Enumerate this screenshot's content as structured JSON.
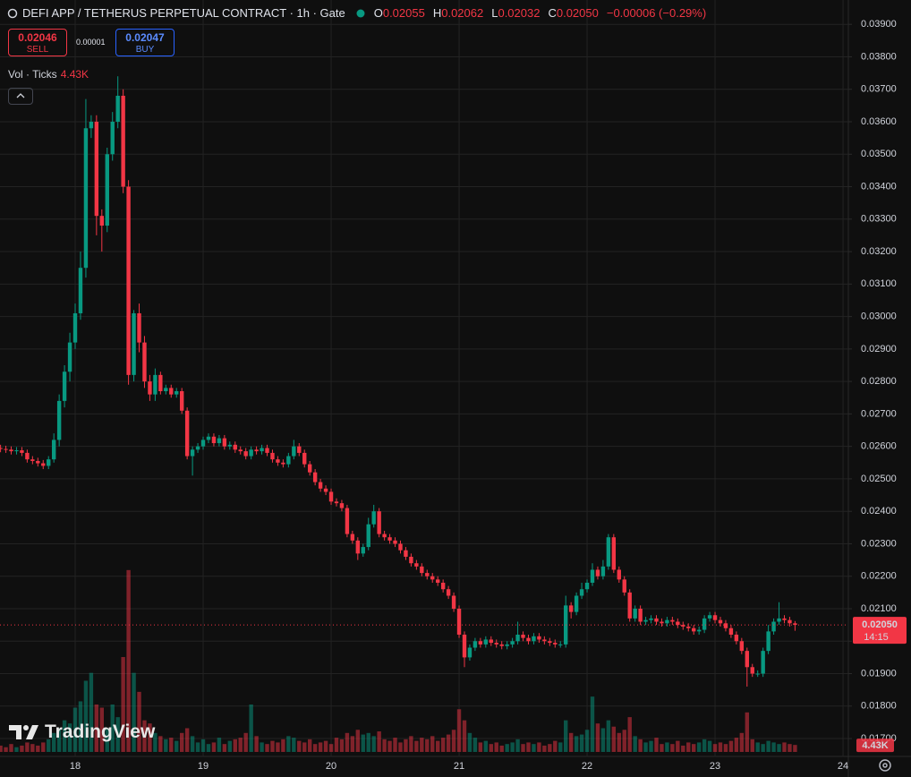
{
  "header": {
    "symbol": "DEFI APP / TETHERUS PERPETUAL CONTRACT · 1h · Gate",
    "ohlc": [
      {
        "key": "O",
        "value": "0.02055"
      },
      {
        "key": "H",
        "value": "0.02062"
      },
      {
        "key": "L",
        "value": "0.02032"
      },
      {
        "key": "C",
        "value": "0.02050"
      }
    ],
    "change": "−0.00006 (−0.29%)"
  },
  "trade": {
    "sell": {
      "price": "0.02046",
      "label": "SELL"
    },
    "spread": "0.00001",
    "buy": {
      "price": "0.02047",
      "label": "BUY"
    }
  },
  "indicator": {
    "name": "Vol · Ticks"
  },
  "price_badge": {
    "countdown": "14:15"
  },
  "watermark": "TradingView",
  "chart_data": {
    "type": "candlestick",
    "up_color": "#089981",
    "down_color": "#f23645",
    "grid": true,
    "x": [
      10,
      11,
      12,
      13,
      14,
      15,
      16,
      17,
      18,
      19,
      20,
      21,
      22,
      23,
      24,
      25,
      26,
      27,
      28,
      29,
      30,
      31,
      32,
      33,
      34,
      35,
      36,
      37,
      38,
      39,
      40,
      41,
      42,
      43,
      44,
      45,
      46,
      47,
      48,
      49,
      50,
      51,
      52,
      53,
      54,
      55,
      56,
      57,
      58,
      59,
      60,
      61,
      62,
      63,
      64,
      65,
      66,
      67,
      68,
      69,
      70,
      71,
      72,
      73,
      74,
      75,
      76,
      77,
      78,
      79,
      80,
      81,
      82,
      83,
      84,
      85,
      86,
      87,
      88,
      89,
      90,
      91,
      92,
      93,
      94,
      95,
      96,
      97,
      98,
      99,
      100,
      101,
      102,
      103,
      104,
      105,
      106,
      107,
      108,
      109,
      110,
      111,
      112,
      113,
      114,
      115,
      116,
      117,
      118,
      119,
      120,
      121,
      122,
      123,
      124,
      125,
      126,
      127,
      128,
      129,
      130,
      131,
      132,
      133,
      134,
      135,
      136,
      137,
      138,
      139,
      140,
      141,
      142,
      143,
      144,
      145,
      146,
      147,
      148,
      149,
      150,
      151,
      152,
      153,
      154,
      155,
      156,
      157,
      158,
      159
    ],
    "open": [
      0.02595,
      0.02592,
      0.0259,
      0.02585,
      0.02588,
      0.0258,
      0.0256,
      0.02555,
      0.02548,
      0.0254,
      0.0256,
      0.0262,
      0.0274,
      0.0283,
      0.0292,
      0.0301,
      0.0315,
      0.0358,
      0.036,
      0.0331,
      0.0328,
      0.035,
      0.036,
      0.0368,
      0.034,
      0.0282,
      0.0301,
      0.0292,
      0.028,
      0.0276,
      0.0282,
      0.0277,
      0.0278,
      0.0276,
      0.0277,
      0.0271,
      0.0257,
      0.0259,
      0.026,
      0.0262,
      0.0263,
      0.0261,
      0.02625,
      0.026,
      0.02605,
      0.0259,
      0.02585,
      0.0257,
      0.0259,
      0.02585,
      0.02595,
      0.0258,
      0.0256,
      0.0255,
      0.02545,
      0.0257,
      0.026,
      0.0258,
      0.02545,
      0.0252,
      0.0249,
      0.0247,
      0.0246,
      0.0243,
      0.02425,
      0.0241,
      0.0233,
      0.0231,
      0.0227,
      0.0229,
      0.0236,
      0.024,
      0.0233,
      0.0232,
      0.0231,
      0.023,
      0.0228,
      0.0226,
      0.0224,
      0.0223,
      0.0221,
      0.022,
      0.0219,
      0.0218,
      0.0216,
      0.0214,
      0.021,
      0.0202,
      0.0195,
      0.0198,
      0.02,
      0.0199,
      0.02005,
      0.01995,
      0.0199,
      0.01985,
      0.0199,
      0.02,
      0.0202,
      0.0201,
      0.02,
      0.02015,
      0.02005,
      0.02,
      0.01995,
      0.0199,
      0.0199,
      0.0211,
      0.0209,
      0.0214,
      0.0216,
      0.0218,
      0.0222,
      0.022,
      0.0223,
      0.0232,
      0.0222,
      0.0219,
      0.0215,
      0.0207,
      0.021,
      0.0206,
      0.02065,
      0.0207,
      0.0206,
      0.02055,
      0.02065,
      0.0206,
      0.0205,
      0.02045,
      0.0204,
      0.0203,
      0.02035,
      0.0207,
      0.0208,
      0.02065,
      0.02055,
      0.0204,
      0.0202,
      0.02,
      0.0197,
      0.0192,
      0.019,
      0.019,
      0.0197,
      0.0203,
      0.0206,
      0.0207,
      0.02065,
      0.02055
    ],
    "high": [
      0.02605,
      0.02602,
      0.026,
      0.02598,
      0.02598,
      0.0259,
      0.0257,
      0.02565,
      0.02558,
      0.0257,
      0.0264,
      0.0276,
      0.0285,
      0.0295,
      0.0304,
      0.032,
      0.0367,
      0.0362,
      0.0362,
      0.0333,
      0.0352,
      0.0363,
      0.0374,
      0.037,
      0.0342,
      0.0302,
      0.0304,
      0.0294,
      0.0282,
      0.0284,
      0.0283,
      0.0279,
      0.0279,
      0.0278,
      0.0278,
      0.0272,
      0.026,
      0.0261,
      0.0263,
      0.0264,
      0.0264,
      0.02635,
      0.02635,
      0.02615,
      0.02615,
      0.026,
      0.02595,
      0.026,
      0.026,
      0.02605,
      0.02605,
      0.0259,
      0.0257,
      0.0256,
      0.0258,
      0.0262,
      0.0261,
      0.0259,
      0.02555,
      0.0253,
      0.025,
      0.0248,
      0.0247,
      0.0244,
      0.02435,
      0.0242,
      0.0234,
      0.0232,
      0.023,
      0.0238,
      0.0242,
      0.0241,
      0.0234,
      0.0233,
      0.0232,
      0.0231,
      0.0229,
      0.0227,
      0.0225,
      0.0224,
      0.0222,
      0.0221,
      0.022,
      0.0219,
      0.0217,
      0.0215,
      0.0211,
      0.0203,
      0.0199,
      0.0201,
      0.0201,
      0.02015,
      0.02015,
      0.02005,
      0.02,
      0.02,
      0.0201,
      0.0206,
      0.0203,
      0.0202,
      0.02025,
      0.02025,
      0.02015,
      0.0201,
      0.02005,
      0.02,
      0.0214,
      0.0212,
      0.0215,
      0.0218,
      0.0219,
      0.0224,
      0.0223,
      0.0225,
      0.0233,
      0.0233,
      0.0223,
      0.022,
      0.0216,
      0.0211,
      0.0211,
      0.02075,
      0.0208,
      0.0208,
      0.0207,
      0.02075,
      0.02075,
      0.0207,
      0.0206,
      0.02055,
      0.0205,
      0.02045,
      0.0208,
      0.0209,
      0.0209,
      0.02075,
      0.02065,
      0.0205,
      0.0203,
      0.0201,
      0.0198,
      0.0193,
      0.0191,
      0.0198,
      0.0205,
      0.0207,
      0.0212,
      0.0208,
      0.02075,
      0.02062
    ],
    "low": [
      0.02582,
      0.0258,
      0.02575,
      0.02575,
      0.0257,
      0.0255,
      0.02545,
      0.02538,
      0.0253,
      0.0253,
      0.0255,
      0.026,
      0.0272,
      0.028,
      0.029,
      0.0299,
      0.0312,
      0.0355,
      0.0325,
      0.032,
      0.0326,
      0.0348,
      0.0358,
      0.0338,
      0.0279,
      0.028,
      0.0289,
      0.0278,
      0.0274,
      0.0274,
      0.0276,
      0.0276,
      0.0275,
      0.0275,
      0.027,
      0.0256,
      0.0251,
      0.0258,
      0.0259,
      0.0261,
      0.026,
      0.026,
      0.0259,
      0.0259,
      0.0258,
      0.02575,
      0.0256,
      0.0256,
      0.02575,
      0.02575,
      0.0257,
      0.0255,
      0.0254,
      0.02535,
      0.02535,
      0.0256,
      0.0257,
      0.02535,
      0.0251,
      0.0248,
      0.0246,
      0.0245,
      0.0242,
      0.02415,
      0.024,
      0.0232,
      0.023,
      0.0225,
      0.0226,
      0.0228,
      0.0235,
      0.0232,
      0.0231,
      0.023,
      0.0229,
      0.0227,
      0.0225,
      0.0223,
      0.0222,
      0.022,
      0.0219,
      0.0218,
      0.0217,
      0.0215,
      0.0213,
      0.0209,
      0.0201,
      0.0192,
      0.0194,
      0.0197,
      0.0198,
      0.0198,
      0.01985,
      0.0198,
      0.01975,
      0.01975,
      0.0198,
      0.0199,
      0.02,
      0.0199,
      0.0199,
      0.01995,
      0.0199,
      0.01985,
      0.0198,
      0.0198,
      0.0198,
      0.0207,
      0.0208,
      0.0213,
      0.0215,
      0.0217,
      0.0219,
      0.0219,
      0.0222,
      0.0221,
      0.0218,
      0.0214,
      0.0206,
      0.0206,
      0.0205,
      0.0205,
      0.02055,
      0.0205,
      0.02045,
      0.02045,
      0.0205,
      0.0204,
      0.02035,
      0.0203,
      0.0202,
      0.0202,
      0.02025,
      0.0206,
      0.02055,
      0.02045,
      0.0203,
      0.0201,
      0.0199,
      0.0196,
      0.0186,
      0.0189,
      0.0189,
      0.0189,
      0.0196,
      0.0202,
      0.0205,
      0.02055,
      0.02045,
      0.02032
    ],
    "close": [
      0.02592,
      0.0259,
      0.02585,
      0.02588,
      0.0258,
      0.0256,
      0.02555,
      0.02548,
      0.0254,
      0.0256,
      0.0262,
      0.0274,
      0.0283,
      0.0292,
      0.0301,
      0.0315,
      0.0358,
      0.036,
      0.0331,
      0.0328,
      0.035,
      0.036,
      0.0368,
      0.034,
      0.0282,
      0.0301,
      0.0292,
      0.028,
      0.0276,
      0.0282,
      0.0277,
      0.0278,
      0.0276,
      0.0277,
      0.0271,
      0.0257,
      0.0259,
      0.026,
      0.0262,
      0.0263,
      0.0261,
      0.02625,
      0.026,
      0.02605,
      0.0259,
      0.02585,
      0.0257,
      0.0259,
      0.02585,
      0.02595,
      0.0258,
      0.0256,
      0.0255,
      0.02545,
      0.0257,
      0.026,
      0.0258,
      0.02545,
      0.0252,
      0.0249,
      0.0247,
      0.0246,
      0.0243,
      0.02425,
      0.0241,
      0.0233,
      0.0231,
      0.0227,
      0.0229,
      0.0236,
      0.024,
      0.0233,
      0.0232,
      0.0231,
      0.023,
      0.0228,
      0.0226,
      0.0224,
      0.0223,
      0.0221,
      0.022,
      0.0219,
      0.0218,
      0.0216,
      0.0214,
      0.021,
      0.0202,
      0.0195,
      0.0198,
      0.02,
      0.0199,
      0.02005,
      0.01995,
      0.0199,
      0.01985,
      0.0199,
      0.02,
      0.0202,
      0.0201,
      0.02,
      0.02015,
      0.02005,
      0.02,
      0.01995,
      0.0199,
      0.0199,
      0.0211,
      0.0209,
      0.0214,
      0.0216,
      0.0218,
      0.0222,
      0.022,
      0.0223,
      0.0232,
      0.0222,
      0.0219,
      0.0215,
      0.0207,
      0.021,
      0.0206,
      0.02065,
      0.0207,
      0.0206,
      0.02055,
      0.02065,
      0.0206,
      0.0205,
      0.02045,
      0.0204,
      0.0203,
      0.02035,
      0.0207,
      0.0208,
      0.02065,
      0.02055,
      0.0204,
      0.0202,
      0.02,
      0.0197,
      0.0192,
      0.019,
      0.019,
      0.0197,
      0.0203,
      0.0206,
      0.0207,
      0.02065,
      0.02055,
      0.0205
    ],
    "volume": [
      4000,
      3000,
      5000,
      3000,
      4000,
      6000,
      5000,
      4000,
      6000,
      8000,
      12000,
      15000,
      20000,
      18000,
      28000,
      32000,
      45000,
      50000,
      30000,
      28000,
      15000,
      30000,
      22000,
      60000,
      115000,
      50000,
      38000,
      20000,
      18000,
      12000,
      10000,
      8000,
      9000,
      7000,
      12000,
      15000,
      10000,
      6000,
      8000,
      5000,
      6000,
      9000,
      5000,
      7000,
      8000,
      9000,
      12000,
      30000,
      10000,
      6000,
      5000,
      7000,
      6000,
      8000,
      10000,
      9000,
      7000,
      6000,
      8000,
      5000,
      6000,
      7000,
      5000,
      9000,
      8000,
      12000,
      10000,
      14000,
      11000,
      12000,
      10000,
      13000,
      8000,
      7000,
      9000,
      6000,
      8000,
      10000,
      7000,
      9000,
      8000,
      10000,
      7000,
      9000,
      11000,
      14000,
      27000,
      20000,
      12000,
      9000,
      6000,
      7000,
      5000,
      6000,
      4000,
      5000,
      6000,
      8000,
      5000,
      6000,
      5000,
      6000,
      4000,
      5000,
      7000,
      6000,
      20000,
      12000,
      10000,
      11000,
      14000,
      35000,
      18000,
      15000,
      20000,
      16000,
      12000,
      14000,
      22000,
      10000,
      8000,
      6000,
      7000,
      9000,
      5000,
      6000,
      5000,
      7000,
      4000,
      6000,
      5000,
      6000,
      8000,
      7000,
      5000,
      6000,
      5000,
      7000,
      9000,
      12000,
      25000,
      8000,
      6000,
      5000,
      7000,
      6000,
      5000,
      6000,
      5000,
      4430
    ],
    "last_price": {
      "value": 0.0205,
      "label": "0.02050"
    },
    "last_volume": {
      "value": 4430,
      "label": "4.43K"
    },
    "xlim": [
      9.9,
      169
    ],
    "xticks": [
      {
        "value": 24,
        "label": "18"
      },
      {
        "value": 48,
        "label": "19"
      },
      {
        "value": 72,
        "label": "20"
      },
      {
        "value": 96,
        "label": "21"
      },
      {
        "value": 120,
        "label": "22"
      },
      {
        "value": 144,
        "label": "23"
      },
      {
        "value": 168,
        "label": "24"
      }
    ],
    "ylim": [
      0.01645,
      0.03975
    ],
    "yticks": [
      {
        "value": 0.017,
        "label": "0.01700"
      },
      {
        "value": 0.018,
        "label": "0.01800"
      },
      {
        "value": 0.019,
        "label": "0.01900"
      },
      {
        "value": 0.02,
        "label": "0.02000"
      },
      {
        "value": 0.021,
        "label": "0.02100"
      },
      {
        "value": 0.022,
        "label": "0.02200"
      },
      {
        "value": 0.023,
        "label": "0.02300"
      },
      {
        "value": 0.024,
        "label": "0.02400"
      },
      {
        "value": 0.025,
        "label": "0.02500"
      },
      {
        "value": 0.026,
        "label": "0.02600"
      },
      {
        "value": 0.027,
        "label": "0.02700"
      },
      {
        "value": 0.028,
        "label": "0.02800"
      },
      {
        "value": 0.029,
        "label": "0.02900"
      },
      {
        "value": 0.03,
        "label": "0.03000"
      },
      {
        "value": 0.031,
        "label": "0.03100"
      },
      {
        "value": 0.032,
        "label": "0.03200"
      },
      {
        "value": 0.033,
        "label": "0.03300"
      },
      {
        "value": 0.034,
        "label": "0.03400"
      },
      {
        "value": 0.035,
        "label": "0.03500"
      },
      {
        "value": 0.036,
        "label": "0.03600"
      },
      {
        "value": 0.037,
        "label": "0.03700"
      },
      {
        "value": 0.038,
        "label": "0.03800"
      },
      {
        "value": 0.039,
        "label": "0.03900"
      }
    ],
    "volume_lim": [
      0,
      120000
    ]
  }
}
